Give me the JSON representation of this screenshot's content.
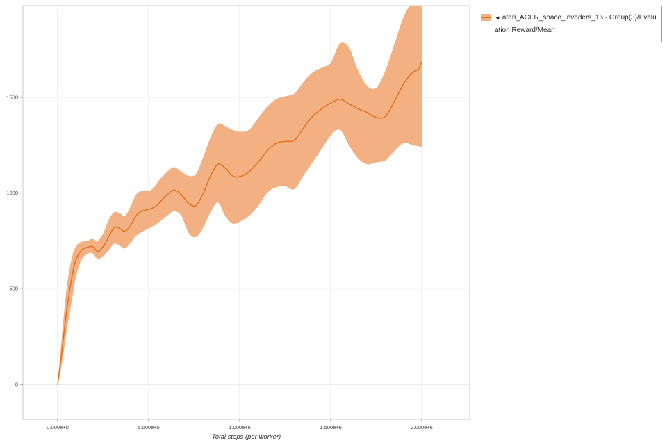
{
  "page": {
    "background": "#ffffff"
  },
  "legend": {
    "collapse_icon": "◄",
    "label": "atari_ACER_space_invaders_16 - Group(3)/Evaluation Reward/Mean",
    "marker_band_color": "#f2b083",
    "marker_line_color": "#e2711d"
  },
  "chart_data": {
    "type": "line",
    "title": "",
    "xlabel": "Total steps (per worker)",
    "ylabel": "",
    "grid": true,
    "legend_position": "top-right-outside",
    "xlim": [
      -191000,
      2263000
    ],
    "ylim": [
      -182,
      1979
    ],
    "x_tick_values": [
      0,
      500000,
      1000000,
      1500000,
      2000000
    ],
    "x_tick_labels": [
      "0.000e+0",
      "5.000e+5",
      "1.000e+6",
      "1.500e+6",
      "2.000e+6"
    ],
    "y_tick_values": [
      0,
      500,
      1000,
      1500
    ],
    "y_tick_labels": [
      "0",
      "500",
      "1000",
      "1500"
    ],
    "grid_color": "#e4e4e4",
    "border_color": "#c9c9c9",
    "tick_text_color": "#444444",
    "series": [
      {
        "name": "atari_ACER_space_invaders_16 - Group(3)/Evaluation Reward/Mean",
        "color": "#e2711d",
        "band_fill": "#f2b083",
        "x": [
          0,
          20000,
          50000,
          80000,
          100000,
          130000,
          160000,
          190000,
          220000,
          250000,
          280000,
          310000,
          340000,
          370000,
          400000,
          430000,
          460000,
          500000,
          530000,
          560000,
          600000,
          640000,
          680000,
          720000,
          760000,
          800000,
          840000,
          880000,
          920000,
          960000,
          1000000,
          1050000,
          1100000,
          1150000,
          1200000,
          1250000,
          1300000,
          1350000,
          1400000,
          1450000,
          1500000,
          1550000,
          1600000,
          1650000,
          1700000,
          1750000,
          1800000,
          1850000,
          1900000,
          1950000,
          1980000,
          2000000
        ],
        "mean": [
          0,
          150,
          390,
          570,
          650,
          700,
          715,
          720,
          695,
          720,
          770,
          820,
          815,
          800,
          830,
          880,
          905,
          915,
          925,
          950,
          990,
          1015,
          990,
          945,
          935,
          1000,
          1090,
          1150,
          1130,
          1090,
          1085,
          1110,
          1160,
          1220,
          1260,
          1270,
          1275,
          1340,
          1400,
          1440,
          1470,
          1490,
          1465,
          1440,
          1420,
          1395,
          1400,
          1480,
          1570,
          1630,
          1645,
          1685
        ],
        "lower": [
          0,
          90,
          280,
          450,
          560,
          650,
          680,
          685,
          655,
          670,
          700,
          735,
          725,
          710,
          740,
          775,
          795,
          815,
          830,
          850,
          880,
          905,
          880,
          790,
          770,
          820,
          900,
          950,
          880,
          840,
          850,
          880,
          930,
          1000,
          1030,
          1035,
          1020,
          1090,
          1160,
          1230,
          1300,
          1330,
          1250,
          1180,
          1150,
          1160,
          1170,
          1220,
          1260,
          1250,
          1245,
          1240
        ],
        "upper": [
          0,
          220,
          510,
          670,
          720,
          745,
          748,
          760,
          750,
          790,
          860,
          900,
          895,
          880,
          930,
          990,
          1010,
          1010,
          1030,
          1070,
          1110,
          1135,
          1110,
          1090,
          1100,
          1190,
          1290,
          1360,
          1350,
          1330,
          1320,
          1330,
          1390,
          1450,
          1490,
          1505,
          1520,
          1580,
          1630,
          1655,
          1680,
          1780,
          1760,
          1640,
          1560,
          1550,
          1640,
          1780,
          1920,
          2000,
          2010,
          2010
        ]
      }
    ]
  }
}
